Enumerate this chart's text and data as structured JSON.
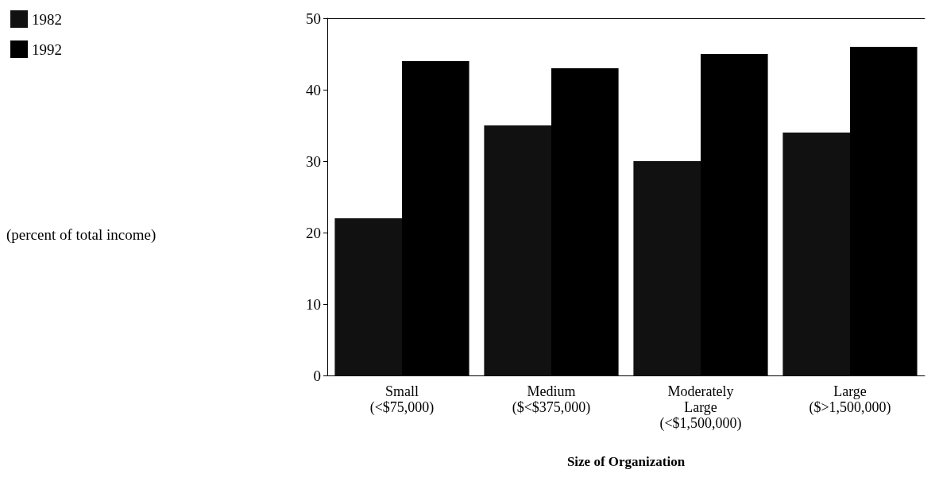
{
  "chart_data": {
    "type": "bar",
    "xlabel": "Size of Organization",
    "annotations": [
      "(percent of total income)"
    ],
    "categories": [
      "Small\n(<$75,000)",
      "Medium\n($<$375,000)",
      "Moderately\nLarge\n(<$1,500,000)",
      "Large\n($>1,500,000)"
    ],
    "series": [
      {
        "name": "1982",
        "color": "#111111",
        "values": [
          22,
          35,
          30,
          34
        ]
      },
      {
        "name": "1992",
        "color": "#000000",
        "values": [
          44,
          43,
          45,
          46
        ]
      }
    ],
    "ylim": [
      0,
      50
    ],
    "yticks": [
      0,
      10,
      20,
      30,
      40,
      50
    ],
    "grid": false,
    "legend": "top left"
  }
}
